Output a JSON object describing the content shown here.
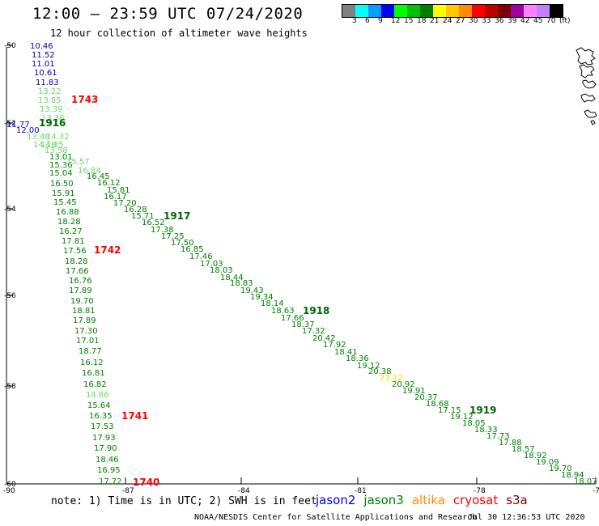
{
  "header": {
    "title": "12:00 — 23:59 UTC 07/24/2020",
    "subtitle": "12 hour collection of altimeter wave heights"
  },
  "legend": {
    "colors": [
      "#808080",
      "#00ffff",
      "#00a0ff",
      "#0000ff",
      "#00ff00",
      "#00c000",
      "#008000",
      "#ffff00",
      "#ffc800",
      "#ff8c00",
      "#ff0000",
      "#c00000",
      "#800000",
      "#a000a0",
      "#ff80ff",
      "#c080ff",
      "#000000"
    ],
    "labels": [
      "3",
      "6",
      "9",
      "12",
      "15",
      "18",
      "21",
      "24",
      "27",
      "30",
      "33",
      "36",
      "39",
      "42",
      "45",
      "70",
      "(ft)"
    ]
  },
  "map": {
    "lat_labels": [
      "-50",
      "-52",
      "-54",
      "-56",
      "-58",
      "-60"
    ],
    "lon_labels": [
      "-90",
      "-87",
      "-84",
      "-81",
      "-78",
      "-75"
    ]
  },
  "tracks": [
    {
      "id": "t1740",
      "time_label": "1740",
      "time_color": "#ff0000",
      "values": [
        "10.46",
        "11.52",
        "11.01",
        "10.61",
        "11.83",
        "13.22",
        "13.85",
        "13.39",
        "13.36",
        "11.77",
        "13.48",
        "14.18",
        "14.35",
        "13.58",
        "13.01",
        "15.36",
        "15.04",
        "16.50",
        "15.91",
        "15.45",
        "16.88",
        "18.28",
        "16.27",
        "17.81",
        "17.56",
        "18.28",
        "17.66",
        "16.76",
        "17.89",
        "19.70",
        "18.81",
        "17.89",
        "17.30",
        "17.01",
        "18.77",
        "16.12",
        "16.81",
        "16.82",
        "14.86",
        "15.64",
        "16.35",
        "17.53",
        "17.93",
        "17.90",
        "18.46",
        "16.95",
        "17.72"
      ],
      "colors": [
        "#0000c0",
        "#0000c0",
        "#0000c0",
        "#0000c0",
        "#0000c0",
        "#66dd66",
        "#66dd66",
        "#66dd66",
        "#66dd66",
        "#0000c0",
        "#66dd66",
        "#66dd66",
        "#66dd66",
        "#66dd66",
        "#008000",
        "#008000",
        "#008000",
        "#008000",
        "#008000",
        "#008000",
        "#008000",
        "#008000",
        "#008000",
        "#008000",
        "#008000",
        "#008000",
        "#008000",
        "#008000",
        "#008000",
        "#008000",
        "#008000",
        "#008000",
        "#008000",
        "#008000",
        "#008000",
        "#008000",
        "#008000",
        "#008000",
        "#66dd66",
        "#008000",
        "#008000",
        "#008000",
        "#008000",
        "#008000",
        "#008000",
        "#008000",
        "#008000"
      ]
    },
    {
      "id": "t1919",
      "time_label": "1916",
      "time_color": "#006400",
      "values": [
        "12.00",
        "14.32",
        "15.57",
        "16.84",
        "16.45",
        "16.12",
        "15.81",
        "16.17",
        "17.20",
        "16.28",
        "15.71",
        "16.52",
        "17.38",
        "17.25",
        "17.50",
        "16.85",
        "17.46",
        "17.03",
        "18.03",
        "18.44",
        "18.83",
        "19.43",
        "19.34",
        "18.14",
        "18.63",
        "17.66",
        "18.37",
        "17.32",
        "20.42",
        "17.92",
        "18.41",
        "18.36",
        "19.12",
        "20.38",
        "23.12",
        "20.92",
        "19.91",
        "20.37",
        "18.68",
        "17.15",
        "19.12",
        "18.05",
        "18.33",
        "17.73",
        "17.88",
        "18.57",
        "18.92",
        "19.09",
        "19.70",
        "18.94",
        "18.07"
      ],
      "colors": [
        "#0000c0",
        "#66dd66",
        "#66dd66",
        "#66dd66",
        "#008000",
        "#008000",
        "#008000",
        "#008000",
        "#008000",
        "#008000",
        "#008000",
        "#008000",
        "#008000",
        "#008000",
        "#008000",
        "#008000",
        "#008000",
        "#008000",
        "#008000",
        "#008000",
        "#008000",
        "#008000",
        "#008000",
        "#008000",
        "#008000",
        "#008000",
        "#008000",
        "#008000",
        "#008000",
        "#008000",
        "#008000",
        "#008000",
        "#008000",
        "#008000",
        "#e6e600",
        "#008000",
        "#008000",
        "#008000",
        "#008000",
        "#008000",
        "#008000",
        "#008000",
        "#008000",
        "#008000",
        "#008000",
        "#008000",
        "#008000",
        "#008000",
        "#008000",
        "#008000",
        "#008000"
      ]
    }
  ],
  "time_labels_track1": [
    {
      "text": "1743",
      "color": "#ff0000"
    },
    {
      "text": "1742",
      "color": "#ff0000"
    },
    {
      "text": "1741",
      "color": "#ff0000"
    },
    {
      "text": "1740",
      "color": "#ff0000"
    }
  ],
  "time_labels_track2": [
    {
      "text": "1916",
      "color": "#006400"
    },
    {
      "text": "1917",
      "color": "#006400"
    },
    {
      "text": "1918",
      "color": "#006400"
    },
    {
      "text": "1919",
      "color": "#006400"
    }
  ],
  "footer": {
    "note": "note: 1) Time is in UTC; 2) SWH is in feet",
    "satellites": [
      {
        "name": "jason2",
        "color": "#0000ff"
      },
      {
        "name": "jason3",
        "color": "#008000"
      },
      {
        "name": "altika",
        "color": "#ff8c00"
      },
      {
        "name": "cryosat",
        "color": "#ff0000"
      },
      {
        "name": "s3a",
        "color": "#800000"
      }
    ],
    "credit": "NOAA/NESDIS Center for Satellite Applications and Research",
    "stamp": "Jul 30 12:36:53 UTC 2020"
  }
}
